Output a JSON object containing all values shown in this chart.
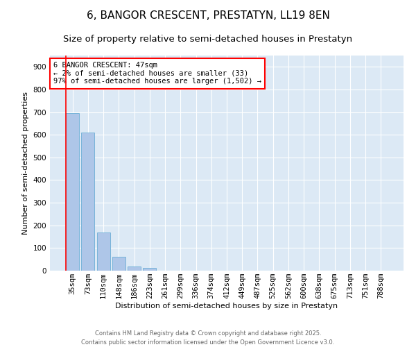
{
  "title": "6, BANGOR CRESCENT, PRESTATYN, LL19 8EN",
  "subtitle": "Size of property relative to semi-detached houses in Prestatyn",
  "xlabel": "Distribution of semi-detached houses by size in Prestatyn",
  "ylabel": "Number of semi-detached properties",
  "categories": [
    "35sqm",
    "73sqm",
    "110sqm",
    "148sqm",
    "186sqm",
    "223sqm",
    "261sqm",
    "299sqm",
    "336sqm",
    "374sqm",
    "412sqm",
    "449sqm",
    "487sqm",
    "525sqm",
    "562sqm",
    "600sqm",
    "638sqm",
    "675sqm",
    "713sqm",
    "751sqm",
    "788sqm"
  ],
  "values": [
    695,
    610,
    170,
    60,
    18,
    12,
    0,
    0,
    0,
    0,
    0,
    0,
    0,
    0,
    0,
    0,
    0,
    0,
    0,
    0,
    0
  ],
  "bar_color": "#aec6e8",
  "bar_edge_color": "#6baed6",
  "marker_color": "red",
  "ylim": [
    0,
    950
  ],
  "yticks": [
    0,
    100,
    200,
    300,
    400,
    500,
    600,
    700,
    800,
    900
  ],
  "annotation_title": "6 BANGOR CRESCENT: 47sqm",
  "annotation_line1": "← 2% of semi-detached houses are smaller (33)",
  "annotation_line2": "97% of semi-detached houses are larger (1,502) →",
  "annotation_box_color": "red",
  "background_color": "#dce9f5",
  "fig_facecolor": "#ffffff",
  "footer_line1": "Contains HM Land Registry data © Crown copyright and database right 2025.",
  "footer_line2": "Contains public sector information licensed under the Open Government Licence v3.0.",
  "title_fontsize": 11,
  "subtitle_fontsize": 9.5,
  "axis_label_fontsize": 8,
  "tick_fontsize": 7.5,
  "annotation_fontsize": 7.5
}
